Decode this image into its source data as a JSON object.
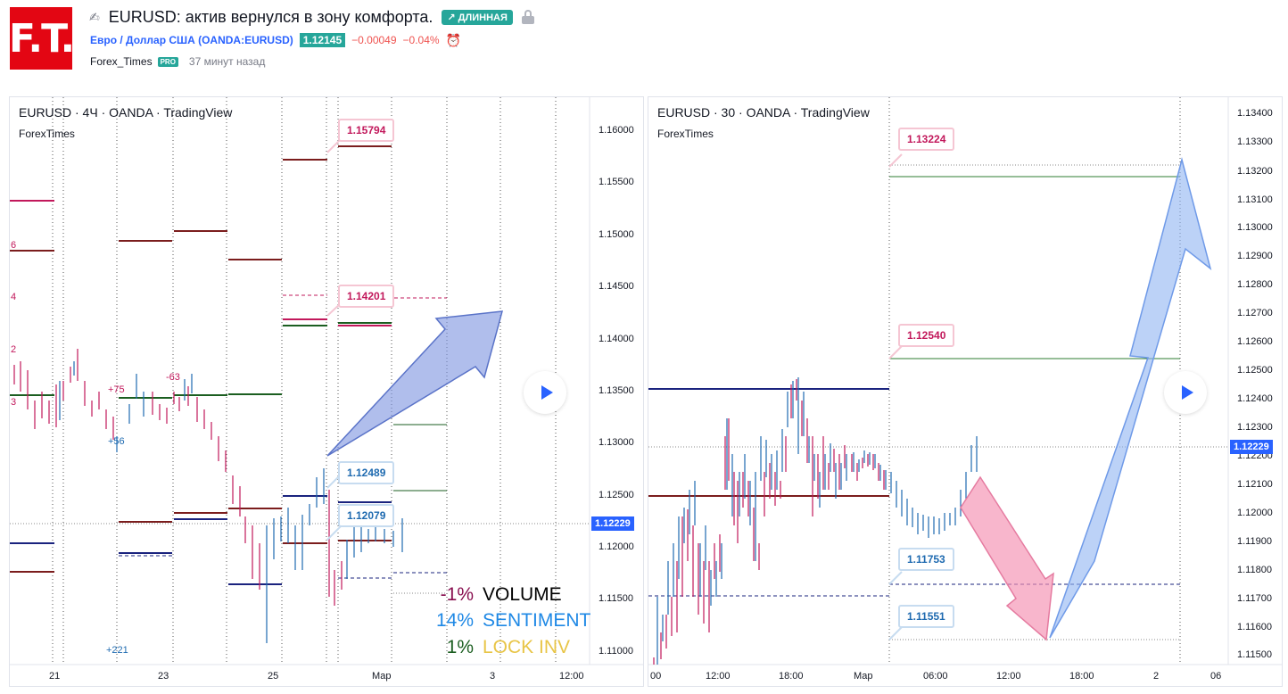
{
  "header": {
    "logo_text": "F.T.",
    "title": "EURUSD: актив вернулся в зону комфорта.",
    "direction_badge": "↗ ДЛИННАЯ",
    "symbol_link": "Евро / Доллар США (OANDA:EURUSD)",
    "price": "1.12145",
    "change": "−0.00049",
    "change_pct": "−0.04%",
    "author": "Forex_Times",
    "author_badge": "PRO",
    "time_ago": "37 минут назад"
  },
  "left_chart": {
    "legend": "EURUSD · 4Ч · OANDA · TradingView",
    "sub": "ForexTimes",
    "price_axis": [
      "1.16000",
      "1.15500",
      "1.15000",
      "1.14500",
      "1.14000",
      "1.13500",
      "1.13000",
      "1.12500",
      "1.12000",
      "1.11500",
      "1.11000"
    ],
    "time_axis": [
      "21",
      "23",
      "25",
      "Мар",
      "3",
      "12:00"
    ],
    "current_price": "1.12229",
    "labels": [
      "1.15794",
      "1.14201",
      "1.12489",
      "1.12079"
    ],
    "volume_annotations": [
      "+75",
      "-63",
      "+56",
      "+221",
      "6",
      "4",
      "2",
      "3"
    ],
    "legend_rows": [
      {
        "pct": "-1%",
        "name": "VOLUME",
        "pct_color": "#880e4f",
        "name_color": "#000000"
      },
      {
        "pct": "14%",
        "name": "SENTIMENT",
        "pct_color": "#1e88e5",
        "name_color": "#1e88e5"
      },
      {
        "pct": "1%",
        "name": "LOCK INV",
        "pct_color": "#1b5e20",
        "name_color": "#e8c547"
      }
    ]
  },
  "right_chart": {
    "legend": "EURUSD · 30 · OANDA · TradingView",
    "sub": "ForexTimes",
    "price_axis": [
      "1.13400",
      "1.13300",
      "1.13200",
      "1.13100",
      "1.13000",
      "1.12900",
      "1.12800",
      "1.12700",
      "1.12600",
      "1.12500",
      "1.12400",
      "1.12300",
      "1.12200",
      "1.12100",
      "1.12000",
      "1.11900",
      "1.11800",
      "1.11700",
      "1.11600",
      "1.11500"
    ],
    "time_axis": [
      "00",
      "12:00",
      "18:00",
      "Мар",
      "06:00",
      "12:00",
      "18:00",
      "2",
      "06"
    ],
    "current_price": "1.12229",
    "labels": [
      "1.13224",
      "1.12540",
      "1.11753",
      "1.11551"
    ]
  },
  "colors": {
    "accent": "#2962ff",
    "up": "#26a69a",
    "down": "#ef5350",
    "logo": "#e30613"
  }
}
